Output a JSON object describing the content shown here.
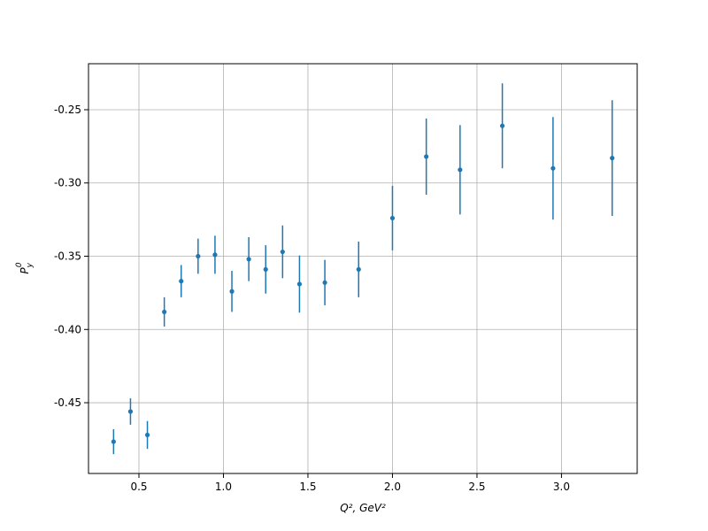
{
  "chart_data": {
    "type": "scatter",
    "xlabel": "Q², GeV²",
    "ylabel": {
      "symbol": "P",
      "sub": "y",
      "sup": "0"
    },
    "x": [
      0.35,
      0.45,
      0.55,
      0.65,
      0.75,
      0.85,
      0.95,
      1.05,
      1.15,
      1.25,
      1.35,
      1.45,
      1.6,
      1.8,
      2.0,
      2.2,
      2.4,
      2.65,
      2.95,
      3.3
    ],
    "y": [
      -0.4766,
      -0.456,
      -0.472,
      -0.388,
      -0.367,
      -0.35,
      -0.349,
      -0.374,
      -0.352,
      -0.359,
      -0.347,
      -0.369,
      -0.368,
      -0.359,
      -0.324,
      -0.282,
      -0.291,
      -0.261,
      -0.29,
      -0.283
    ],
    "yerr": [
      0.0085,
      0.009,
      0.0095,
      0.01,
      0.011,
      0.012,
      0.013,
      0.014,
      0.015,
      0.0165,
      0.018,
      0.0195,
      0.0155,
      0.019,
      0.022,
      0.026,
      0.0305,
      0.029,
      0.035,
      0.0395
    ],
    "color": "#1f77b4",
    "xlim": [
      0.2016,
      3.448
    ],
    "ylim": [
      -0.4983,
      -0.2186
    ],
    "xticks": [
      0.5,
      {
        "value": 1.0,
        "label": "1.0"
      },
      1.5,
      {
        "value": 2.0,
        "label": "2.0"
      },
      2.5,
      {
        "value": 3.0,
        "label": "3.0"
      }
    ],
    "yticks": [
      {
        "value": -0.45,
        "label": "-0.45"
      },
      {
        "value": -0.4,
        "label": "-0.40"
      },
      {
        "value": -0.35,
        "label": "-0.35"
      },
      {
        "value": -0.3,
        "label": "-0.30"
      },
      {
        "value": -0.25,
        "label": "-0.25"
      }
    ],
    "grid": true
  }
}
